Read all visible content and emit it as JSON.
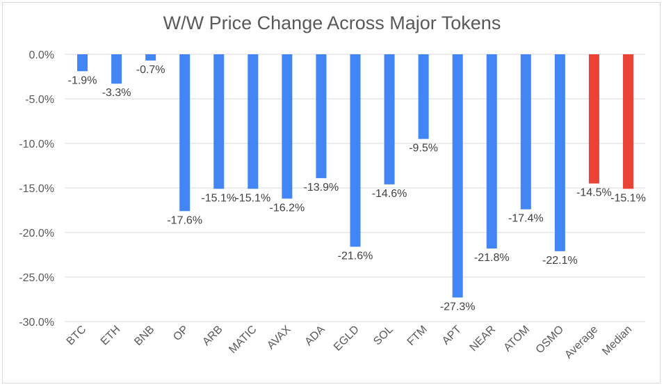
{
  "chart_data": {
    "type": "bar",
    "title": "W/W Price Change Across Major Tokens",
    "categories": [
      "BTC",
      "ETH",
      "BNB",
      "OP",
      "ARB",
      "MATIC",
      "AVAX",
      "ADA",
      "EGLD",
      "SOL",
      "FTM",
      "APT",
      "NEAR",
      "ATOM",
      "OSMO",
      "Average",
      "Median"
    ],
    "values": [
      -1.9,
      -3.3,
      -0.7,
      -17.6,
      -15.1,
      -15.1,
      -16.2,
      -13.9,
      -21.6,
      -14.6,
      -9.5,
      -27.3,
      -21.8,
      -17.4,
      -22.1,
      -14.5,
      -15.1
    ],
    "data_labels": [
      "-1.9%",
      "-3.3%",
      "-0.7%",
      "-17.6%",
      "-15.1%",
      "-15.1%",
      "-16.2%",
      "-13.9%",
      "-21.6%",
      "-14.6%",
      "-9.5%",
      "-27.3%",
      "-21.8%",
      "-17.4%",
      "-22.1%",
      "-14.5%",
      "-15.1%"
    ],
    "colors": [
      "#4285f4",
      "#4285f4",
      "#4285f4",
      "#4285f4",
      "#4285f4",
      "#4285f4",
      "#4285f4",
      "#4285f4",
      "#4285f4",
      "#4285f4",
      "#4285f4",
      "#4285f4",
      "#4285f4",
      "#4285f4",
      "#4285f4",
      "#ea4335",
      "#ea4335"
    ],
    "ylim": [
      -30,
      0
    ],
    "yticks": [
      0,
      -5,
      -10,
      -15,
      -20,
      -25,
      -30
    ],
    "ytick_labels": [
      "0.0%",
      "-5.0%",
      "-10.0%",
      "-15.0%",
      "-20.0%",
      "-25.0%",
      "-30.0%"
    ],
    "grid": true,
    "gridline_color": "#d9d9d9"
  }
}
